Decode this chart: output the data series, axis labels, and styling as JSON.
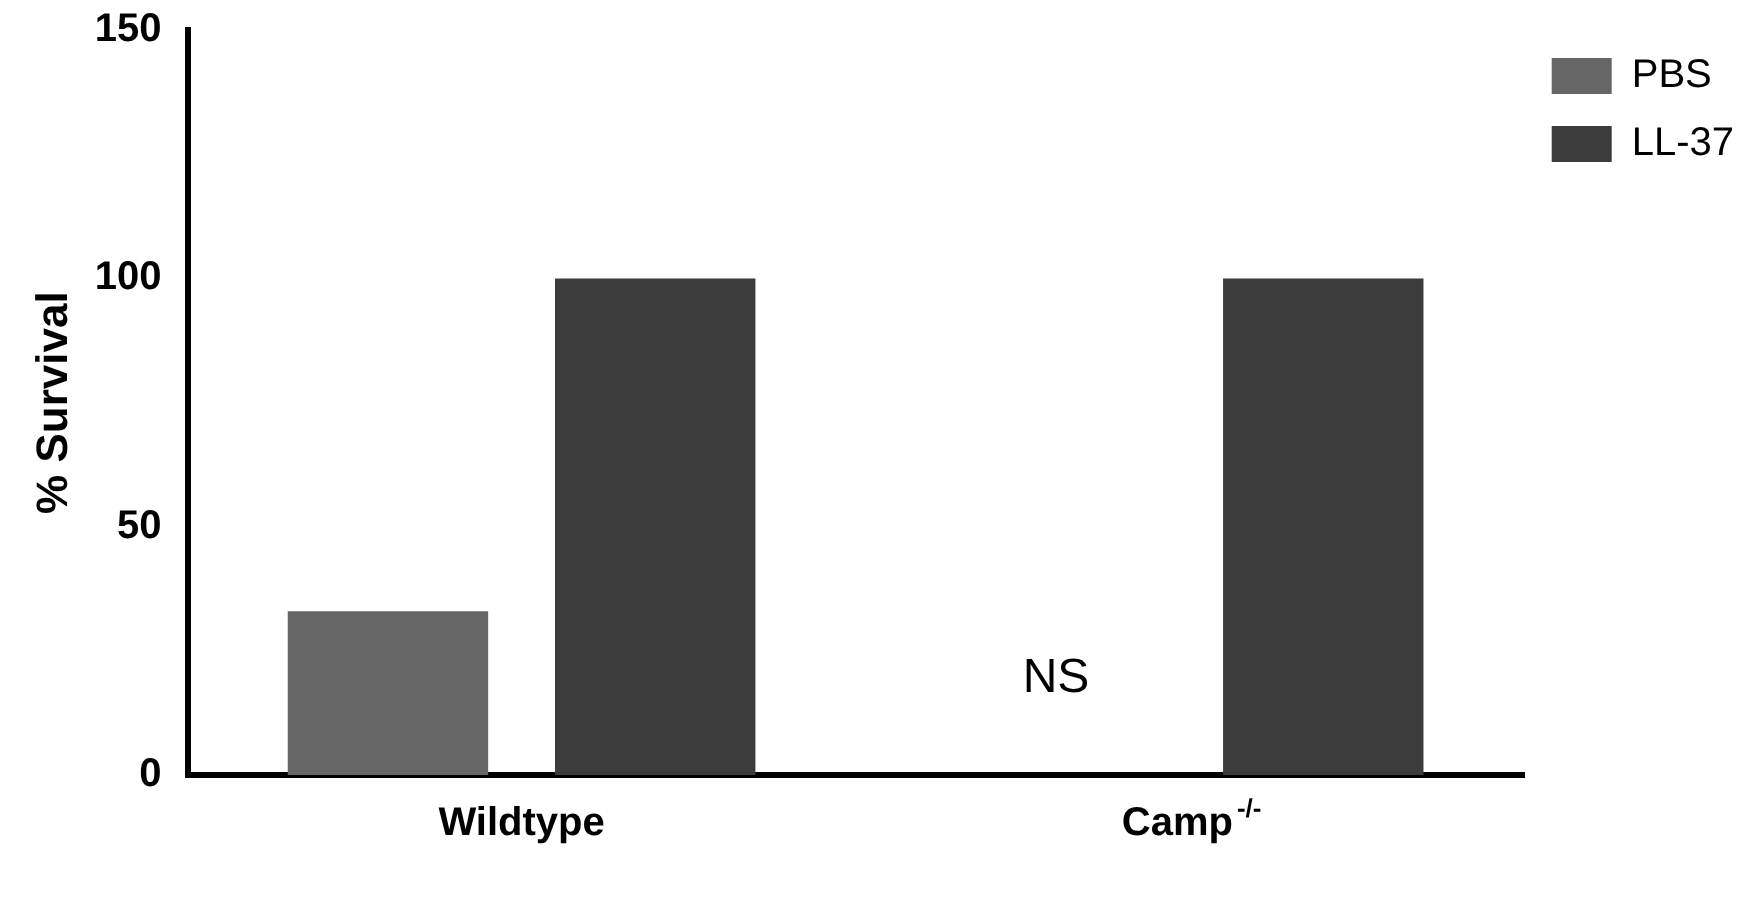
{
  "chart_data": {
    "type": "bar",
    "ylabel": "% Survival",
    "categories": [
      "Wildtype",
      "Camp$^{-/-}$"
    ],
    "series": [
      {
        "name": "PBS",
        "color": "#666666",
        "values": [
          33,
          0
        ]
      },
      {
        "name": "LL-37",
        "color": "#3c3c3c",
        "values": [
          100,
          100
        ]
      }
    ],
    "ylim": [
      0,
      150
    ],
    "yticks": [
      0,
      50,
      100,
      150
    ],
    "grid": false,
    "legend": "top right",
    "annotations": [
      "NS"
    ]
  }
}
